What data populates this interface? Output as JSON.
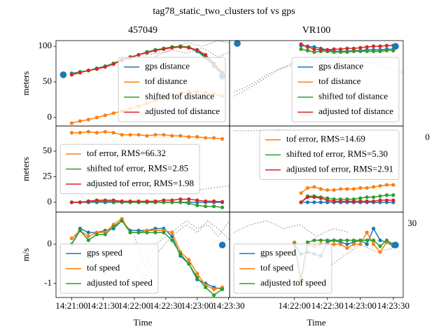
{
  "title": "tag78_static_two_clusters tof vs gps",
  "chart_data": [
    {
      "type": "line",
      "title": "457049",
      "ylabel": "meters",
      "legend": "lower right",
      "x": [
        "14:21:00",
        "14:21:08",
        "14:21:16",
        "14:21:24",
        "14:21:32",
        "14:21:40",
        "14:21:48",
        "14:21:56",
        "14:22:04",
        "14:22:12",
        "14:22:20",
        "14:22:28",
        "14:22:36",
        "14:22:44",
        "14:22:52",
        "14:23:00",
        "14:23:08",
        "14:23:16",
        "14:23:24"
      ],
      "xlim": [
        "14:20:45",
        "14:23:31"
      ],
      "ylim": [
        -12,
        108
      ],
      "yticks": [
        0,
        50,
        100
      ],
      "series": [
        {
          "color": "#808080",
          "style": "dotted",
          "x": [
            "14:22:10",
            "14:22:30",
            "14:22:50",
            "14:23:05",
            "14:23:20",
            "14:23:31"
          ],
          "values": [
            88,
            92,
            105,
            100,
            108,
            104
          ]
        },
        {
          "color": "#808080",
          "style": "dotted",
          "x": [
            "14:22:20",
            "14:22:35",
            "14:22:50",
            "14:23:05",
            "14:23:20",
            "14:23:31"
          ],
          "values": [
            86,
            95,
            90,
            98,
            85,
            92
          ]
        },
        {
          "name": "gps distance",
          "color": "#1f77b4",
          "marker": true,
          "values": [
            62,
            64,
            66,
            69,
            72,
            76,
            80,
            84,
            88,
            92,
            95,
            97,
            99,
            100,
            98,
            93,
            84,
            72,
            60
          ]
        },
        {
          "name": "tof distance",
          "color": "#ff7f0e",
          "marker": true,
          "values": [
            -8,
            -5,
            -3,
            0,
            3,
            6,
            9,
            12,
            16,
            20,
            24,
            28,
            32,
            34,
            36,
            36,
            35,
            33,
            30
          ]
        },
        {
          "name": "shifted tof distance",
          "color": "#2ca02c",
          "marker": true,
          "values": [
            61,
            64,
            66,
            69,
            72,
            76,
            81,
            85,
            88,
            92,
            95,
            97,
            99,
            100,
            99,
            94,
            86,
            74,
            62
          ]
        },
        {
          "name": "adjusted tof distance",
          "color": "#d62728",
          "marker": true,
          "values": [
            60,
            63,
            66,
            68,
            71,
            75,
            80,
            84,
            88,
            91,
            94,
            96,
            98,
            99,
            98,
            95,
            88,
            76,
            63
          ]
        }
      ],
      "points": {
        "color": "#1f77b4",
        "x": [
          "14:20:52",
          "14:23:24"
        ],
        "values": [
          60,
          58
        ]
      }
    },
    {
      "type": "line",
      "title": "VR100",
      "legend": "lower right",
      "x": [
        "14:22:06",
        "14:22:12",
        "14:22:18",
        "14:22:24",
        "14:22:30",
        "14:22:36",
        "14:22:42",
        "14:22:48",
        "14:22:54",
        "14:23:00",
        "14:23:06",
        "14:23:12",
        "14:23:18",
        "14:23:24",
        "14:23:30"
      ],
      "xlim": [
        "14:21:01",
        "14:23:39"
      ],
      "ylim": [
        -12,
        108
      ],
      "series": [
        {
          "color": "#808080",
          "style": "dotted",
          "x": [
            "14:21:05",
            "14:21:15",
            "14:21:25",
            "14:21:35",
            "14:21:45",
            "14:21:55",
            "14:22:05"
          ],
          "values": [
            30,
            38,
            47,
            57,
            66,
            74,
            82
          ]
        },
        {
          "color": "#808080",
          "style": "dotted",
          "x": [
            "14:21:05",
            "14:21:15",
            "14:21:25",
            "14:21:35",
            "14:21:45",
            "14:21:55",
            "14:22:05"
          ],
          "values": [
            36,
            42,
            50,
            60,
            68,
            72,
            80
          ]
        },
        {
          "color": "#808080",
          "style": "dotted",
          "x": [
            "14:22:40",
            "14:22:55",
            "14:23:10",
            "14:23:25",
            "14:23:39"
          ],
          "values": [
            85,
            80,
            76,
            70,
            63
          ]
        },
        {
          "name": "gps distance",
          "color": "#1f77b4",
          "marker": true,
          "values": [
            101,
            100,
            99,
            97,
            95,
            93,
            93,
            93,
            94,
            94,
            95,
            95,
            95,
            96,
            96
          ]
        },
        {
          "name": "tof distance",
          "color": "#ff7f0e",
          "marker": true,
          "values": [
            96,
            94,
            92,
            93,
            93,
            92,
            92,
            92,
            93,
            93,
            93,
            93,
            93,
            94,
            94
          ]
        },
        {
          "name": "shifted tof distance",
          "color": "#2ca02c",
          "marker": true,
          "values": [
            96,
            94,
            92,
            93,
            93,
            92,
            92,
            92,
            93,
            93,
            93,
            93,
            93,
            94,
            94
          ]
        },
        {
          "name": "adjusted tof distance",
          "color": "#d62728",
          "marker": true,
          "values": [
            103,
            99,
            96,
            95,
            95,
            96,
            96,
            97,
            97,
            98,
            99,
            100,
            100,
            101,
            101
          ]
        }
      ],
      "points": {
        "color": "#1f77b4",
        "x": [
          "14:21:08",
          "14:23:32"
        ],
        "values": [
          104,
          100
        ]
      }
    },
    {
      "type": "line",
      "ylabel": "meters",
      "legend": "center left",
      "x": [
        "14:21:00",
        "14:21:08",
        "14:21:16",
        "14:21:24",
        "14:21:32",
        "14:21:40",
        "14:21:48",
        "14:21:56",
        "14:22:04",
        "14:22:12",
        "14:22:20",
        "14:22:28",
        "14:22:36",
        "14:22:44",
        "14:22:52",
        "14:23:00",
        "14:23:08",
        "14:23:16",
        "14:23:24"
      ],
      "xlim": [
        "14:20:45",
        "14:23:31"
      ],
      "ylim": [
        -9.6,
        74.6
      ],
      "yticks": [
        0,
        25,
        50
      ],
      "series": [
        {
          "color": "#808080",
          "style": "dotted",
          "x": [
            "14:23:00",
            "14:23:15",
            "14:23:31"
          ],
          "values": [
            12,
            14,
            16
          ]
        },
        {
          "color": "#1f77b4",
          "marker": true,
          "values": [
            0,
            0,
            0,
            0,
            0,
            0,
            0,
            0,
            0,
            0,
            0,
            0,
            0,
            0,
            0,
            0,
            0,
            0,
            0
          ]
        },
        {
          "name": "tof error, RMS=66.32",
          "color": "#ff7f0e",
          "marker": true,
          "values": [
            68,
            68,
            69,
            68,
            69,
            68,
            66,
            66,
            66,
            65,
            66,
            66,
            65,
            65,
            64,
            64,
            63,
            63,
            62
          ]
        },
        {
          "name": "shifted tof error, RMS=2.85",
          "color": "#2ca02c",
          "marker": true,
          "values": [
            0,
            0,
            1,
            1,
            1,
            1,
            0,
            0,
            0,
            0,
            0,
            0,
            0,
            0,
            -1,
            -3,
            -4,
            -4,
            -5
          ]
        },
        {
          "name": "adjusted tof error, RMS=1.98",
          "color": "#d62728",
          "marker": true,
          "values": [
            0,
            0,
            1,
            2,
            2,
            2,
            1,
            1,
            1,
            1,
            1,
            2,
            2,
            3,
            3,
            2,
            1,
            1,
            0.5
          ]
        }
      ]
    },
    {
      "type": "line",
      "legend": "upper right",
      "x": [
        "14:22:06",
        "14:22:12",
        "14:22:18",
        "14:22:24",
        "14:22:30",
        "14:22:36",
        "14:22:42",
        "14:22:48",
        "14:22:54",
        "14:23:00",
        "14:23:06",
        "14:23:12",
        "14:23:18",
        "14:23:24",
        "14:23:30"
      ],
      "xlim": [
        "14:21:01",
        "14:23:39"
      ],
      "ylim": [
        -9.6,
        74.6
      ],
      "series": [
        {
          "color": "#808080",
          "style": "dotted",
          "x": [
            "14:21:05",
            "14:21:25",
            "14:21:45",
            "14:22:00"
          ],
          "values": [
            70,
            70,
            71,
            70
          ]
        },
        {
          "color": "#1f77b4",
          "marker": true,
          "values": [
            0,
            0,
            0,
            0,
            0,
            0,
            0,
            0,
            0,
            0,
            0,
            0,
            0,
            0,
            0
          ]
        },
        {
          "name": "tof error, RMS=14.69",
          "color": "#ff7f0e",
          "marker": true,
          "values": [
            9,
            14,
            15,
            13,
            12,
            12,
            13,
            13,
            13,
            14,
            14,
            15,
            16,
            17,
            17
          ]
        },
        {
          "name": "shifted tof error, RMS=5.30",
          "color": "#2ca02c",
          "marker": true,
          "values": [
            0,
            6,
            6,
            5,
            4,
            3,
            3,
            3,
            3,
            4,
            5,
            5,
            6,
            7,
            7
          ]
        },
        {
          "name": "adjusted tof error, RMS=2.91",
          "color": "#d62728",
          "marker": true,
          "values": [
            0,
            5,
            5,
            4,
            2,
            1,
            1,
            1,
            1,
            1,
            1,
            1,
            2,
            2,
            2
          ]
        }
      ],
      "annotations": [
        {
          "text": "0",
          "x": "14:23:59",
          "y": 63
        }
      ]
    },
    {
      "type": "line",
      "ylabel": "m/s",
      "xlabel": "Time",
      "legend": "lower left",
      "x": [
        "14:21:00",
        "14:21:08",
        "14:21:16",
        "14:21:24",
        "14:21:32",
        "14:21:40",
        "14:21:48",
        "14:21:56",
        "14:22:04",
        "14:22:12",
        "14:22:20",
        "14:22:28",
        "14:22:36",
        "14:22:44",
        "14:22:52",
        "14:23:00",
        "14:23:08",
        "14:23:16",
        "14:23:24"
      ],
      "xlim": [
        "14:20:45",
        "14:23:31"
      ],
      "ylim": [
        -1.36,
        0.82
      ],
      "yticks": [
        -1,
        0
      ],
      "xticks": [
        "14:21:00",
        "14:21:30",
        "14:22:00",
        "14:22:30",
        "14:23:00",
        "14:23:30"
      ],
      "series": [
        {
          "color": "#808080",
          "style": "dotted",
          "x": [
            "14:22:00",
            "14:22:10",
            "14:22:20",
            "14:22:35",
            "14:22:50",
            "14:23:00",
            "14:23:10",
            "14:23:20",
            "14:23:31"
          ],
          "values": [
            -0.5,
            -0.9,
            -0.3,
            0.2,
            0.5,
            0.3,
            0.6,
            0.4,
            0.1
          ]
        },
        {
          "color": "#808080",
          "style": "dotted",
          "x": [
            "14:22:00",
            "14:22:10",
            "14:22:20",
            "14:22:35",
            "14:22:50",
            "14:23:00",
            "14:23:10",
            "14:23:20",
            "14:23:31"
          ],
          "values": [
            0.2,
            -0.6,
            0.0,
            0.3,
            0.6,
            0.4,
            0.5,
            0.2,
            0.6
          ]
        },
        {
          "name": "gps speed",
          "color": "#1f77b4",
          "marker": true,
          "values": [
            0,
            0.4,
            0.3,
            0.3,
            0.35,
            0.4,
            0.6,
            0.35,
            0.35,
            0.35,
            0.4,
            0.4,
            0.2,
            -0.3,
            -0.5,
            -0.9,
            -1.0,
            -1.1,
            -1.15
          ]
        },
        {
          "name": "tof speed",
          "color": "#ff7f0e",
          "marker": true,
          "values": [
            0.15,
            0.35,
            0.2,
            0.3,
            0.3,
            0.5,
            0.65,
            0.3,
            0.3,
            0.35,
            0.35,
            0.35,
            0.3,
            -0.2,
            -0.4,
            -0.75,
            -1.05,
            -1.15,
            -1.1
          ]
        },
        {
          "name": "adjusted tof speed",
          "color": "#2ca02c",
          "marker": true,
          "values": [
            0,
            0.35,
            0.1,
            0.25,
            0.25,
            0.45,
            0.6,
            0.3,
            0.3,
            0.3,
            0.3,
            0.3,
            0.1,
            -0.25,
            -0.5,
            -0.85,
            -1.1,
            -1.3,
            -1.15
          ]
        }
      ],
      "points": {
        "color": "#1f77b4",
        "x": [
          "14:23:24"
        ],
        "values": [
          -0.02
        ]
      }
    },
    {
      "type": "line",
      "xlabel": "Time",
      "legend": "lower left",
      "x": [
        "14:22:00",
        "14:22:06",
        "14:22:12",
        "14:22:18",
        "14:22:24",
        "14:22:30",
        "14:22:36",
        "14:22:42",
        "14:22:48",
        "14:22:54",
        "14:23:00",
        "14:23:06",
        "14:23:12",
        "14:23:18",
        "14:23:24",
        "14:23:30"
      ],
      "xlim": [
        "14:21:01",
        "14:23:39"
      ],
      "ylim": [
        -1.36,
        0.82
      ],
      "xticks": [
        "14:22:00",
        "14:22:30",
        "14:23:00",
        "14:23:30"
      ],
      "series": [
        {
          "color": "#808080",
          "style": "dotted",
          "x": [
            "14:21:05",
            "14:21:20",
            "14:21:35",
            "14:21:50",
            "14:22:05",
            "14:22:20",
            "14:22:35",
            "14:22:50"
          ],
          "values": [
            0.3,
            0.5,
            0.6,
            0.4,
            0.5,
            0.2,
            0.4,
            0.3
          ]
        },
        {
          "color": "#808080",
          "style": "dotted",
          "x": [
            "14:22:30",
            "14:22:45",
            "14:23:00",
            "14:23:15",
            "14:23:30"
          ],
          "values": [
            -0.6,
            -0.3,
            0.0,
            -0.2,
            -0.1
          ]
        },
        {
          "name": "gps speed",
          "color": "#1f77b4",
          "marker": true,
          "values": [
            0,
            -0.25,
            -0.2,
            -0.25,
            -0.3,
            0.05,
            0.1,
            0.05,
            0.0,
            0.05,
            0.1,
            0.0,
            0.4,
            0.1,
            0.05,
            -0.05
          ]
        },
        {
          "name": "tof speed",
          "color": "#ff7f0e",
          "marker": true,
          "values": [
            0.05,
            -0.95,
            0.0,
            -0.05,
            0.0,
            0.0,
            0.0,
            0.0,
            -0.1,
            0.0,
            0.0,
            0.3,
            0.0,
            -0.2,
            0.05,
            0.0
          ]
        },
        {
          "name": "adjusted tof speed",
          "color": "#2ca02c",
          "marker": true,
          "values": [
            0.0,
            -0.9,
            0.05,
            0.1,
            0.1,
            0.1,
            0.1,
            0.1,
            0.1,
            0.1,
            0.1,
            0.1,
            0.1,
            -0.05,
            0.1,
            0.0
          ]
        }
      ],
      "points": {
        "color": "#1f77b4",
        "x": [
          "14:23:32"
        ],
        "values": [
          -0.02
        ]
      },
      "annotations": [
        {
          "text": "30",
          "x": "14:23:43",
          "y": 0.52
        }
      ]
    }
  ]
}
